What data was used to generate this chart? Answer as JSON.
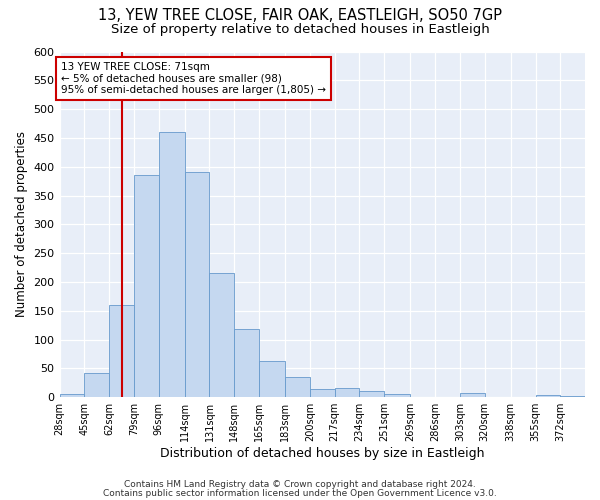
{
  "title_line1": "13, YEW TREE CLOSE, FAIR OAK, EASTLEIGH, SO50 7GP",
  "title_line2": "Size of property relative to detached houses in Eastleigh",
  "xlabel": "Distribution of detached houses by size in Eastleigh",
  "ylabel": "Number of detached properties",
  "bin_labels": [
    "28sqm",
    "45sqm",
    "62sqm",
    "79sqm",
    "96sqm",
    "114sqm",
    "131sqm",
    "148sqm",
    "165sqm",
    "183sqm",
    "200sqm",
    "217sqm",
    "234sqm",
    "251sqm",
    "269sqm",
    "286sqm",
    "303sqm",
    "320sqm",
    "338sqm",
    "355sqm",
    "372sqm"
  ],
  "bar_heights": [
    5,
    42,
    160,
    385,
    460,
    390,
    215,
    118,
    63,
    35,
    15,
    16,
    11,
    6,
    0,
    0,
    7,
    0,
    0,
    3,
    2
  ],
  "bar_color": "#c5d8f0",
  "bar_edge_color": "#6699cc",
  "vline_color": "#cc0000",
  "annotation_text": "13 YEW TREE CLOSE: 71sqm\n← 5% of detached houses are smaller (98)\n95% of semi-detached houses are larger (1,805) →",
  "annotation_box_color": "#cc0000",
  "ylim": [
    0,
    600
  ],
  "yticks": [
    0,
    50,
    100,
    150,
    200,
    250,
    300,
    350,
    400,
    450,
    500,
    550,
    600
  ],
  "bin_edges": [
    28,
    45,
    62,
    79,
    96,
    114,
    131,
    148,
    165,
    183,
    200,
    217,
    234,
    251,
    269,
    286,
    303,
    320,
    338,
    355,
    372,
    389
  ],
  "vline_x_sqm": 71,
  "footer_line1": "Contains HM Land Registry data © Crown copyright and database right 2024.",
  "footer_line2": "Contains public sector information licensed under the Open Government Licence v3.0.",
  "background_color": "#e8eef8",
  "grid_color": "#ffffff",
  "fig_bg": "#ffffff"
}
